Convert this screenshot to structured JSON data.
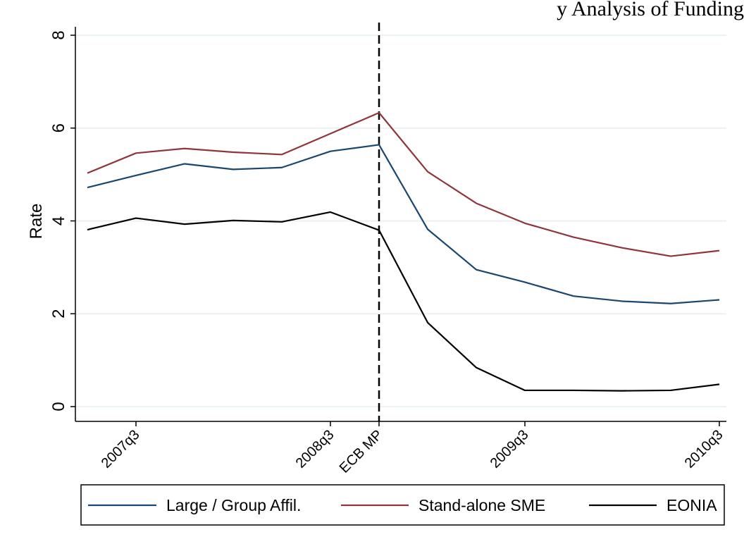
{
  "chart_data": {
    "type": "line",
    "title": "y Analysis of Funding",
    "xlabel": "",
    "ylabel": "Rate",
    "ylim": [
      0,
      8
    ],
    "yticks": [
      0,
      2,
      4,
      6,
      8
    ],
    "x": [
      0,
      1,
      2,
      3,
      4,
      5,
      6,
      7,
      8,
      9,
      10,
      11,
      12,
      13
    ],
    "xticks": [
      {
        "x": 1,
        "label": "2007q3"
      },
      {
        "x": 5,
        "label": "2008q3"
      },
      {
        "x": 6,
        "label": "ECB MP"
      },
      {
        "x": 9,
        "label": "2009q3"
      },
      {
        "x": 13,
        "label": "2010q3"
      }
    ],
    "vline": {
      "x": 6,
      "label": "ECB MP",
      "style": "dashed",
      "color": "#000000"
    },
    "grid": true,
    "legend_position": "bottom",
    "series": [
      {
        "name": "Large / Group Affil.",
        "color": "#1a476f",
        "values": [
          4.72,
          4.98,
          5.23,
          5.11,
          5.15,
          5.5,
          5.64,
          3.82,
          2.95,
          2.68,
          2.38,
          2.27,
          2.22,
          2.3
        ]
      },
      {
        "name": "Stand-alone SME",
        "color": "#90353b",
        "values": [
          5.03,
          5.46,
          5.56,
          5.48,
          5.43,
          5.88,
          6.33,
          5.06,
          4.38,
          3.95,
          3.65,
          3.42,
          3.24,
          3.36
        ]
      },
      {
        "name": "EONIA",
        "color": "#000000",
        "values": [
          3.81,
          4.06,
          3.93,
          4.01,
          3.98,
          4.19,
          3.8,
          1.81,
          0.84,
          0.35,
          0.35,
          0.34,
          0.35,
          0.48
        ]
      }
    ]
  }
}
